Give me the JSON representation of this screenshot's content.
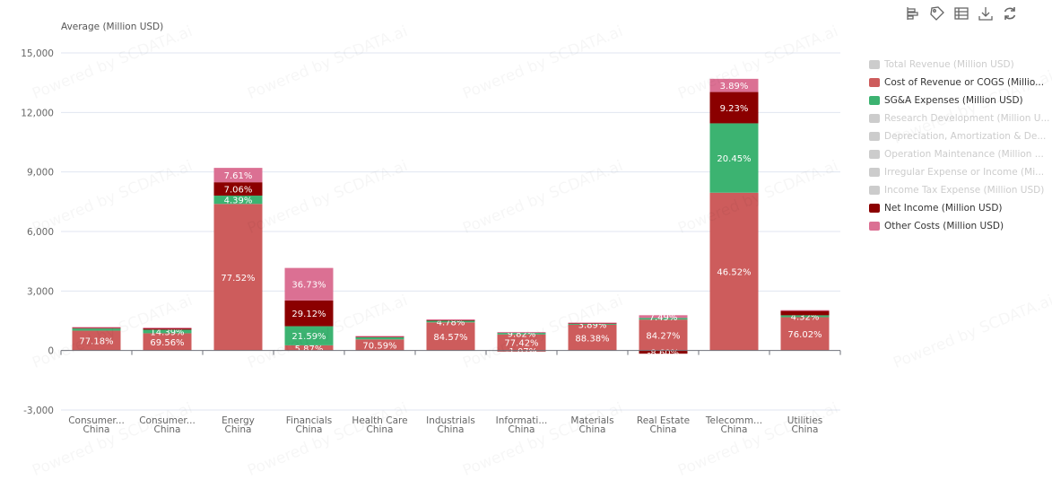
{
  "toolbar": {
    "icons": [
      "bar-chart-icon",
      "tag-icon",
      "table-icon",
      "download-icon",
      "refresh-icon"
    ]
  },
  "watermark": "Powered by SCDATA.ai",
  "legend": [
    {
      "label": "Total Revenue (Million USD)",
      "color": "#cccccc",
      "active": false
    },
    {
      "label": "Cost of Revenue or COGS (Millio...",
      "color": "#cd5c5c",
      "active": true
    },
    {
      "label": "SG&A Expenses (Million USD)",
      "color": "#3cb371",
      "active": true
    },
    {
      "label": "Research Development (Million U...",
      "color": "#cccccc",
      "active": false
    },
    {
      "label": "Depreciation, Amortization & De...",
      "color": "#cccccc",
      "active": false
    },
    {
      "label": "Operation Maintenance (Million ...",
      "color": "#cccccc",
      "active": false
    },
    {
      "label": "Irregular Expense or Income (Mi...",
      "color": "#cccccc",
      "active": false
    },
    {
      "label": "Income Tax Expense (Million USD)",
      "color": "#cccccc",
      "active": false
    },
    {
      "label": "Net Income (Million USD)",
      "color": "#8b0000",
      "active": true
    },
    {
      "label": "Other Costs (Million USD)",
      "color": "#db7093",
      "active": true
    }
  ],
  "chart_data": {
    "type": "bar",
    "stacked": true,
    "ylabel": "Average (Million USD)",
    "ylim": [
      -3000,
      15000
    ],
    "yticks": [
      -3000,
      0,
      3000,
      6000,
      9000,
      12000,
      15000
    ],
    "ytick_labels": [
      "-3,000",
      "0",
      "3,000",
      "6,000",
      "9,000",
      "12,000",
      "15,000"
    ],
    "grid": true,
    "legend_position": "right",
    "categories": [
      [
        "Consumer...",
        "China"
      ],
      [
        "Consumer...",
        "China"
      ],
      [
        "Energy",
        "China"
      ],
      [
        "Financials",
        "China"
      ],
      [
        "Health Care",
        "China"
      ],
      [
        "Industrials",
        "China"
      ],
      [
        "Informati...",
        "China"
      ],
      [
        "Materials",
        "China"
      ],
      [
        "Real Estate",
        "China"
      ],
      [
        "Telecomm...",
        "China"
      ],
      [
        "Utilities",
        "China"
      ]
    ],
    "series": [
      {
        "name": "Cost of Revenue or COGS (Million USD)",
        "color": "#cd5c5c",
        "values": [
          1000,
          870,
          7390,
          262,
          560,
          1420,
          810,
          1300,
          1560,
          7955,
          1680
        ],
        "labels": [
          "77.18%",
          "69.56%",
          "77.52%",
          "5.87%",
          "70.59%",
          "84.57%",
          "77.42%",
          "88.38%",
          "84.27%",
          "46.52%",
          "76.02%"
        ]
      },
      {
        "name": "SG&A Expenses (Million USD)",
        "color": "#3cb371",
        "values": [
          110,
          180,
          418,
          963,
          110,
          80,
          100,
          57,
          80,
          3497,
          95
        ],
        "labels": [
          "",
          "14.39%",
          "4.39%",
          "21.59%",
          "",
          "4.78%",
          "9.82%",
          "3.89%",
          "",
          "20.45%",
          "4.32%"
        ]
      },
      {
        "name": "Net Income (Million USD)",
        "color": "#8b0000",
        "values": [
          50,
          80,
          673,
          1299,
          40,
          50,
          -11,
          30,
          -160,
          1578,
          240
        ],
        "labels": [
          "",
          "",
          "7.06%",
          "29.12%",
          "",
          "",
          "-1.07%",
          "",
          "-8.60%",
          "9.23%",
          ""
        ]
      },
      {
        "name": "Other Costs (Million USD)",
        "color": "#db7093",
        "values": [
          20,
          20,
          725,
          1638,
          20,
          20,
          20,
          20,
          140,
          665,
          20
        ],
        "labels": [
          "",
          "",
          "7.61%",
          "36.73%",
          "",
          "",
          "",
          "",
          "7.49%",
          "3.89%",
          ""
        ]
      }
    ]
  }
}
